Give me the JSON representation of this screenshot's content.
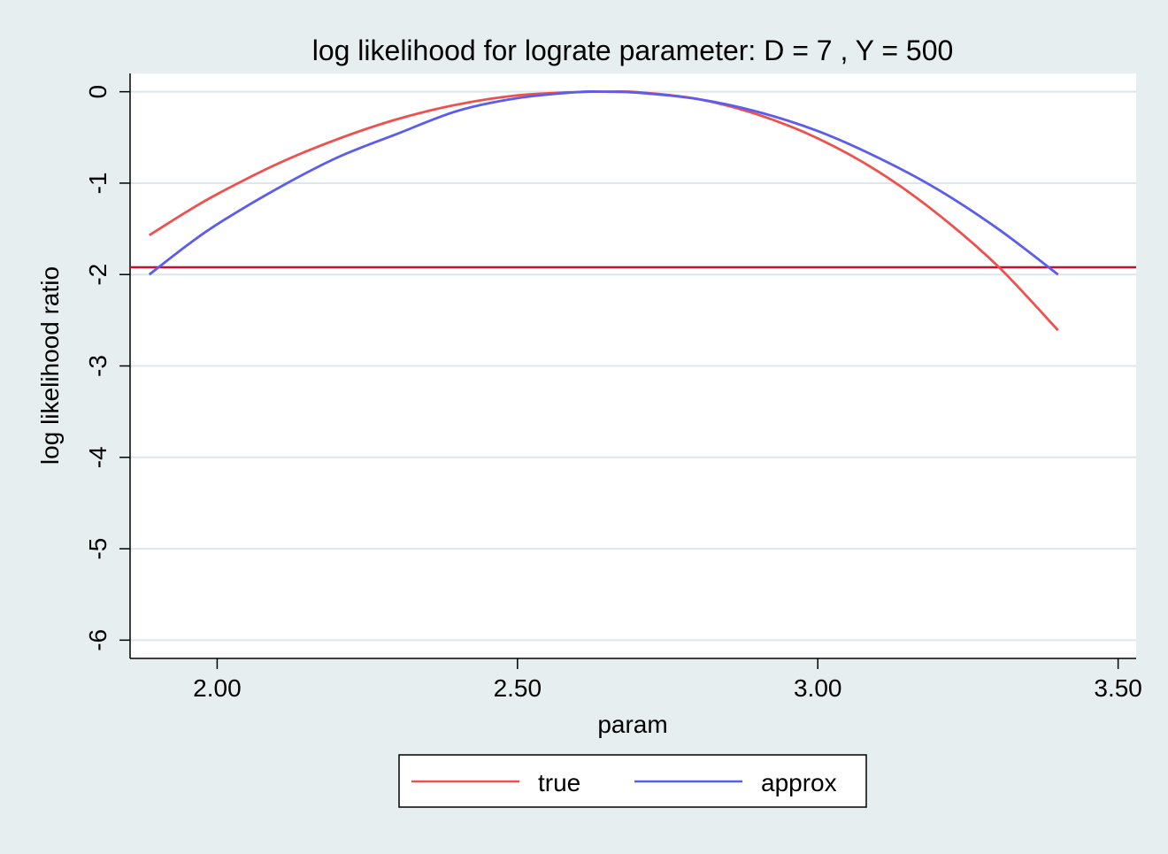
{
  "chart_data": {
    "type": "line",
    "title": "log likelihood for lograte parameter: D = 7 , Y = 500",
    "xlabel": "param",
    "ylabel": "log likelihood ratio",
    "xlim": [
      1.855,
      3.53
    ],
    "ylim": [
      -6.2,
      0.2
    ],
    "xticks": [
      2.0,
      2.5,
      3.0,
      3.5
    ],
    "xtick_labels": [
      "2.00",
      "2.50",
      "3.00",
      "3.50"
    ],
    "yticks": [
      0,
      -1,
      -2,
      -3,
      -4,
      -5,
      -6
    ],
    "ytick_labels": [
      "0",
      "-1",
      "-2",
      "-3",
      "-4",
      "-5",
      "-6"
    ],
    "grid": true,
    "legend_position": "bottom",
    "series": [
      {
        "name": "true",
        "color": "#f0504d",
        "x": [
          1.887,
          1.95,
          2.0,
          2.1,
          2.2,
          2.3,
          2.4,
          2.5,
          2.6,
          2.646,
          2.7,
          2.8,
          2.9,
          3.0,
          3.1,
          3.2,
          3.3,
          3.4
        ],
        "y": [
          -1.57,
          -1.31,
          -1.12,
          -0.79,
          -0.52,
          -0.3,
          -0.14,
          -0.04,
          -0.003,
          0.0,
          -0.005,
          -0.08,
          -0.25,
          -0.51,
          -0.87,
          -1.34,
          -1.91,
          -2.61
        ]
      },
      {
        "name": "approx",
        "color": "#5b5cf0",
        "x": [
          1.887,
          1.95,
          2.0,
          2.1,
          2.2,
          2.3,
          2.4,
          2.5,
          2.6,
          2.646,
          2.7,
          2.8,
          2.9,
          3.0,
          3.1,
          3.2,
          3.3,
          3.4
        ],
        "y": [
          -2.0,
          -1.68,
          -1.45,
          -1.06,
          -0.72,
          -0.46,
          -0.21,
          -0.07,
          -0.004,
          0.0,
          -0.01,
          -0.08,
          -0.22,
          -0.43,
          -0.72,
          -1.07,
          -1.5,
          -2.0
        ]
      }
    ],
    "reference_line": {
      "y": -1.92,
      "color": "#c8102e"
    }
  }
}
